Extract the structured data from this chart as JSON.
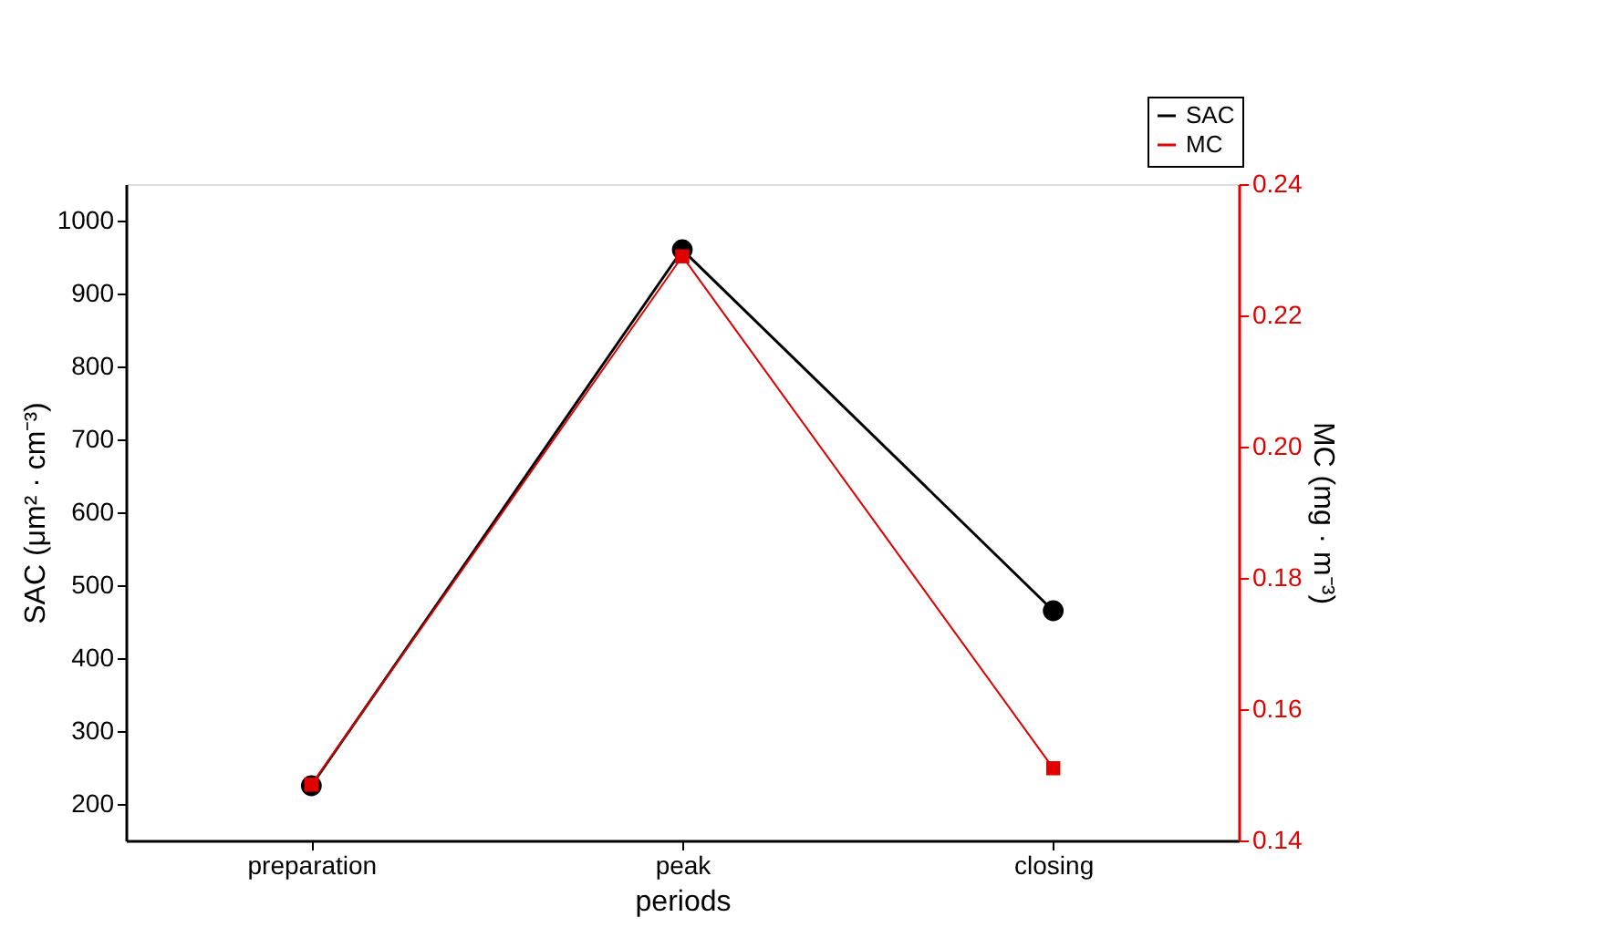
{
  "chart_data": {
    "type": "line",
    "xlabel": "periods",
    "ylabel": "SAC (μm² · cm⁻³)",
    "y2label": "MC (mg · m⁻³)",
    "categories": [
      "preparation",
      "peak",
      "closing"
    ],
    "series": [
      {
        "name": "SAC",
        "color": "#000000",
        "values": [
          225,
          960,
          465
        ],
        "marker": "circle"
      },
      {
        "name": "MC",
        "color": "#e00000",
        "values": [
          0.1485,
          0.229,
          0.151
        ],
        "axis": "y2",
        "marker": "square"
      }
    ],
    "ylim": [
      150,
      1050
    ],
    "yticks": [
      200,
      300,
      400,
      500,
      600,
      700,
      800,
      900,
      1000
    ],
    "y2lim": [
      0.14,
      0.24
    ],
    "y2ticks": [
      {
        "value": 0.14,
        "label": "0.14"
      },
      {
        "value": 0.16,
        "label": "0.16"
      },
      {
        "value": 0.18,
        "label": "0.18"
      },
      {
        "value": 0.2,
        "label": "0.20"
      },
      {
        "value": 0.22,
        "label": "0.22"
      },
      {
        "value": 0.24,
        "label": "0.24"
      }
    ],
    "grid": false,
    "legend": "top right",
    "line_style": "solid"
  }
}
